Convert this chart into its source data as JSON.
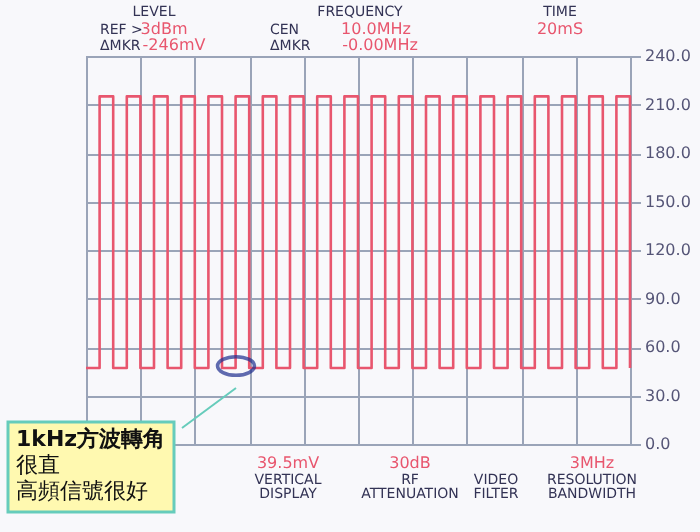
{
  "chart_data": {
    "type": "step",
    "categories": [
      null,
      null,
      null,
      null,
      null,
      null,
      null,
      null,
      null,
      null,
      null,
      null,
      null,
      null,
      null,
      null,
      null,
      null,
      null,
      null,
      null,
      null,
      null,
      null,
      null,
      null,
      null,
      null,
      null,
      null,
      null,
      null,
      null,
      null,
      null,
      null,
      null,
      null,
      null,
      null,
      null
    ],
    "series": [
      {
        "color": "#e8566e",
        "values": [
          47,
          215,
          47,
          215,
          47,
          215,
          47,
          215,
          47,
          215,
          47,
          215,
          47,
          215,
          47,
          215,
          47,
          215,
          47,
          215,
          47,
          215,
          47,
          215,
          47,
          215,
          47,
          215,
          47,
          215,
          47,
          215,
          47,
          215,
          47,
          215,
          47,
          215,
          47,
          215,
          47
        ]
      }
    ],
    "ylim": [
      0,
      240
    ],
    "yticks": [
      {
        "value": 0,
        "label": "0.0"
      },
      {
        "value": 30,
        "label": "30.0"
      },
      {
        "value": 60,
        "label": "60.0"
      },
      {
        "value": 90,
        "label": "90.0"
      },
      {
        "value": 120,
        "label": "120.0"
      },
      {
        "value": 150,
        "label": "150.0"
      },
      {
        "value": 180,
        "label": "180.0"
      },
      {
        "value": 210,
        "label": "210.0"
      },
      {
        "value": 240,
        "label": "240.0"
      }
    ],
    "grid": true,
    "tick_labels": "y",
    "annotations": [
      "LEVEL",
      "REF >",
      "3dBm",
      "ΔMKR",
      "-246mV",
      "FREQUENCY",
      "CEN",
      "10.0MHz",
      "ΔMKR",
      "-0.00MHz",
      "TIME",
      "20mS",
      "39.5mV",
      "VERTICAL",
      "DISPLAY",
      "30dB",
      "RF",
      "ATTENUATION",
      "VIDEO",
      "FILTER",
      "3MHz",
      "RESOLUTION",
      "BANDWIDTH",
      "1kHz方波轉角",
      "很直",
      "高頻信號很好"
    ]
  }
}
